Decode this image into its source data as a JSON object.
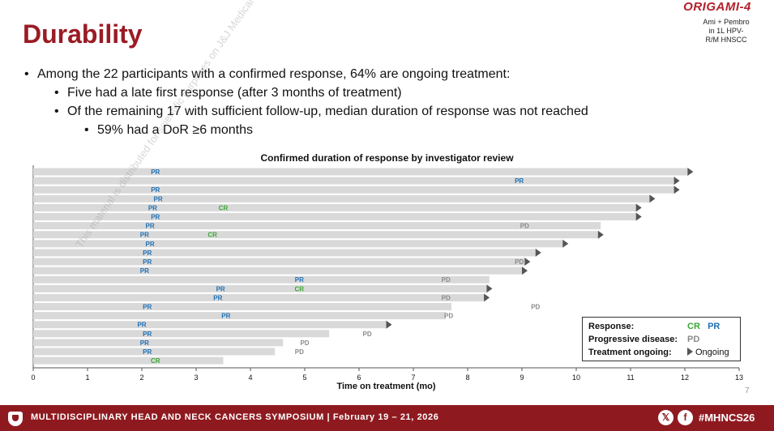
{
  "header": {
    "title": "Durability",
    "logo_text": "ORIGAMI-4",
    "logo_subtitle_lines": [
      "Ami + Pembro",
      "in 1L HPV-",
      "R/M HNSCC"
    ]
  },
  "watermark": "This material is distributed for scientific purposes on J&J Medical Connect, and is not for promotional use",
  "bullets": {
    "main": "Among the 22 participants with a confirmed response, 64% are ongoing treatment:",
    "sub1": "Five had a late first response (after 3 months of treatment)",
    "sub2": "Of the remaining 17 with sufficient follow-up, median duration of response was not reached",
    "sub3": "59% had a DoR ≥6 months"
  },
  "colors": {
    "cr": "#3aa635",
    "pr": "#1f6fb5",
    "pd": "#8a8a8a",
    "bar": "#d9d9d9",
    "ongoing_arrow": "#555555",
    "brand": "#9a1b24"
  },
  "chart_data": {
    "type": "bar",
    "orientation": "horizontal",
    "title": "Confirmed duration of response by investigator review",
    "xlabel": "Time on treatment (mo)",
    "xlim": [
      0,
      13
    ],
    "xticks": [
      "0",
      "1",
      "2",
      "3",
      "4",
      "5",
      "6",
      "7",
      "8",
      "9",
      "10",
      "11",
      "12",
      "13"
    ],
    "grid": false,
    "legend_position": "bottom-right",
    "patients": [
      {
        "duration": 12.05,
        "ongoing": true,
        "events": [
          {
            "type": "PR",
            "t": 2.25
          }
        ]
      },
      {
        "duration": 11.8,
        "ongoing": true,
        "events": [
          {
            "type": "PR",
            "t": 8.95
          }
        ]
      },
      {
        "duration": 11.8,
        "ongoing": true,
        "events": [
          {
            "type": "PR",
            "t": 2.25
          }
        ]
      },
      {
        "duration": 11.35,
        "ongoing": true,
        "events": [
          {
            "type": "PR",
            "t": 2.3
          }
        ]
      },
      {
        "duration": 11.1,
        "ongoing": true,
        "events": [
          {
            "type": "PR",
            "t": 2.2
          },
          {
            "type": "CR",
            "t": 3.5
          }
        ]
      },
      {
        "duration": 11.1,
        "ongoing": true,
        "events": [
          {
            "type": "PR",
            "t": 2.25
          }
        ]
      },
      {
        "duration": 10.45,
        "ongoing": false,
        "events": [
          {
            "type": "PR",
            "t": 2.15
          },
          {
            "type": "PD",
            "t": 9.05
          }
        ]
      },
      {
        "duration": 10.4,
        "ongoing": true,
        "events": [
          {
            "type": "PR",
            "t": 2.05
          },
          {
            "type": "CR",
            "t": 3.3
          }
        ]
      },
      {
        "duration": 9.75,
        "ongoing": true,
        "events": [
          {
            "type": "PR",
            "t": 2.15
          }
        ]
      },
      {
        "duration": 9.25,
        "ongoing": true,
        "events": [
          {
            "type": "PR",
            "t": 2.1
          }
        ]
      },
      {
        "duration": 9.05,
        "ongoing": true,
        "events": [
          {
            "type": "PR",
            "t": 2.1
          },
          {
            "type": "PD",
            "t": 8.95
          }
        ]
      },
      {
        "duration": 9.0,
        "ongoing": true,
        "events": [
          {
            "type": "PR",
            "t": 2.05
          }
        ]
      },
      {
        "duration": 8.4,
        "ongoing": false,
        "events": [
          {
            "type": "PR",
            "t": 4.9
          },
          {
            "type": "PD",
            "t": 7.6
          }
        ]
      },
      {
        "duration": 8.35,
        "ongoing": true,
        "events": [
          {
            "type": "PR",
            "t": 3.45
          },
          {
            "type": "CR",
            "t": 4.9
          }
        ]
      },
      {
        "duration": 8.3,
        "ongoing": true,
        "events": [
          {
            "type": "PR",
            "t": 3.4
          },
          {
            "type": "PD",
            "t": 7.6
          }
        ]
      },
      {
        "duration": 7.7,
        "ongoing": false,
        "events": [
          {
            "type": "PR",
            "t": 2.1
          },
          {
            "type": "PD",
            "t": 9.25
          }
        ]
      },
      {
        "duration": 7.6,
        "ongoing": false,
        "events": [
          {
            "type": "PR",
            "t": 3.55
          },
          {
            "type": "PD",
            "t": 7.65
          }
        ]
      },
      {
        "duration": 6.5,
        "ongoing": true,
        "events": [
          {
            "type": "PR",
            "t": 2.0
          }
        ]
      },
      {
        "duration": 5.45,
        "ongoing": false,
        "events": [
          {
            "type": "PR",
            "t": 2.1
          },
          {
            "type": "PD",
            "t": 6.15
          }
        ]
      },
      {
        "duration": 4.6,
        "ongoing": false,
        "events": [
          {
            "type": "PR",
            "t": 2.05
          },
          {
            "type": "PD",
            "t": 5.0
          }
        ]
      },
      {
        "duration": 4.45,
        "ongoing": false,
        "events": [
          {
            "type": "PR",
            "t": 2.1
          },
          {
            "type": "PD",
            "t": 4.9
          }
        ]
      },
      {
        "duration": 3.5,
        "ongoing": false,
        "events": [
          {
            "type": "CR",
            "t": 2.25
          }
        ]
      }
    ]
  },
  "legend": {
    "response_label": "Response:",
    "cr": "CR",
    "pr": "PR",
    "pd_label": "Progressive disease:",
    "pd": "PD",
    "ongoing_label": "Treatment ongoing:",
    "ongoing_text": "Ongoing"
  },
  "page_number": "7",
  "footer": {
    "text": "MULTIDISCIPLINARY HEAD AND NECK CANCERS SYMPOSIUM | February 19 – 21, 2026",
    "x_icon": "𝕏",
    "f_icon": "f",
    "hashtag": "#MHNCS26"
  }
}
